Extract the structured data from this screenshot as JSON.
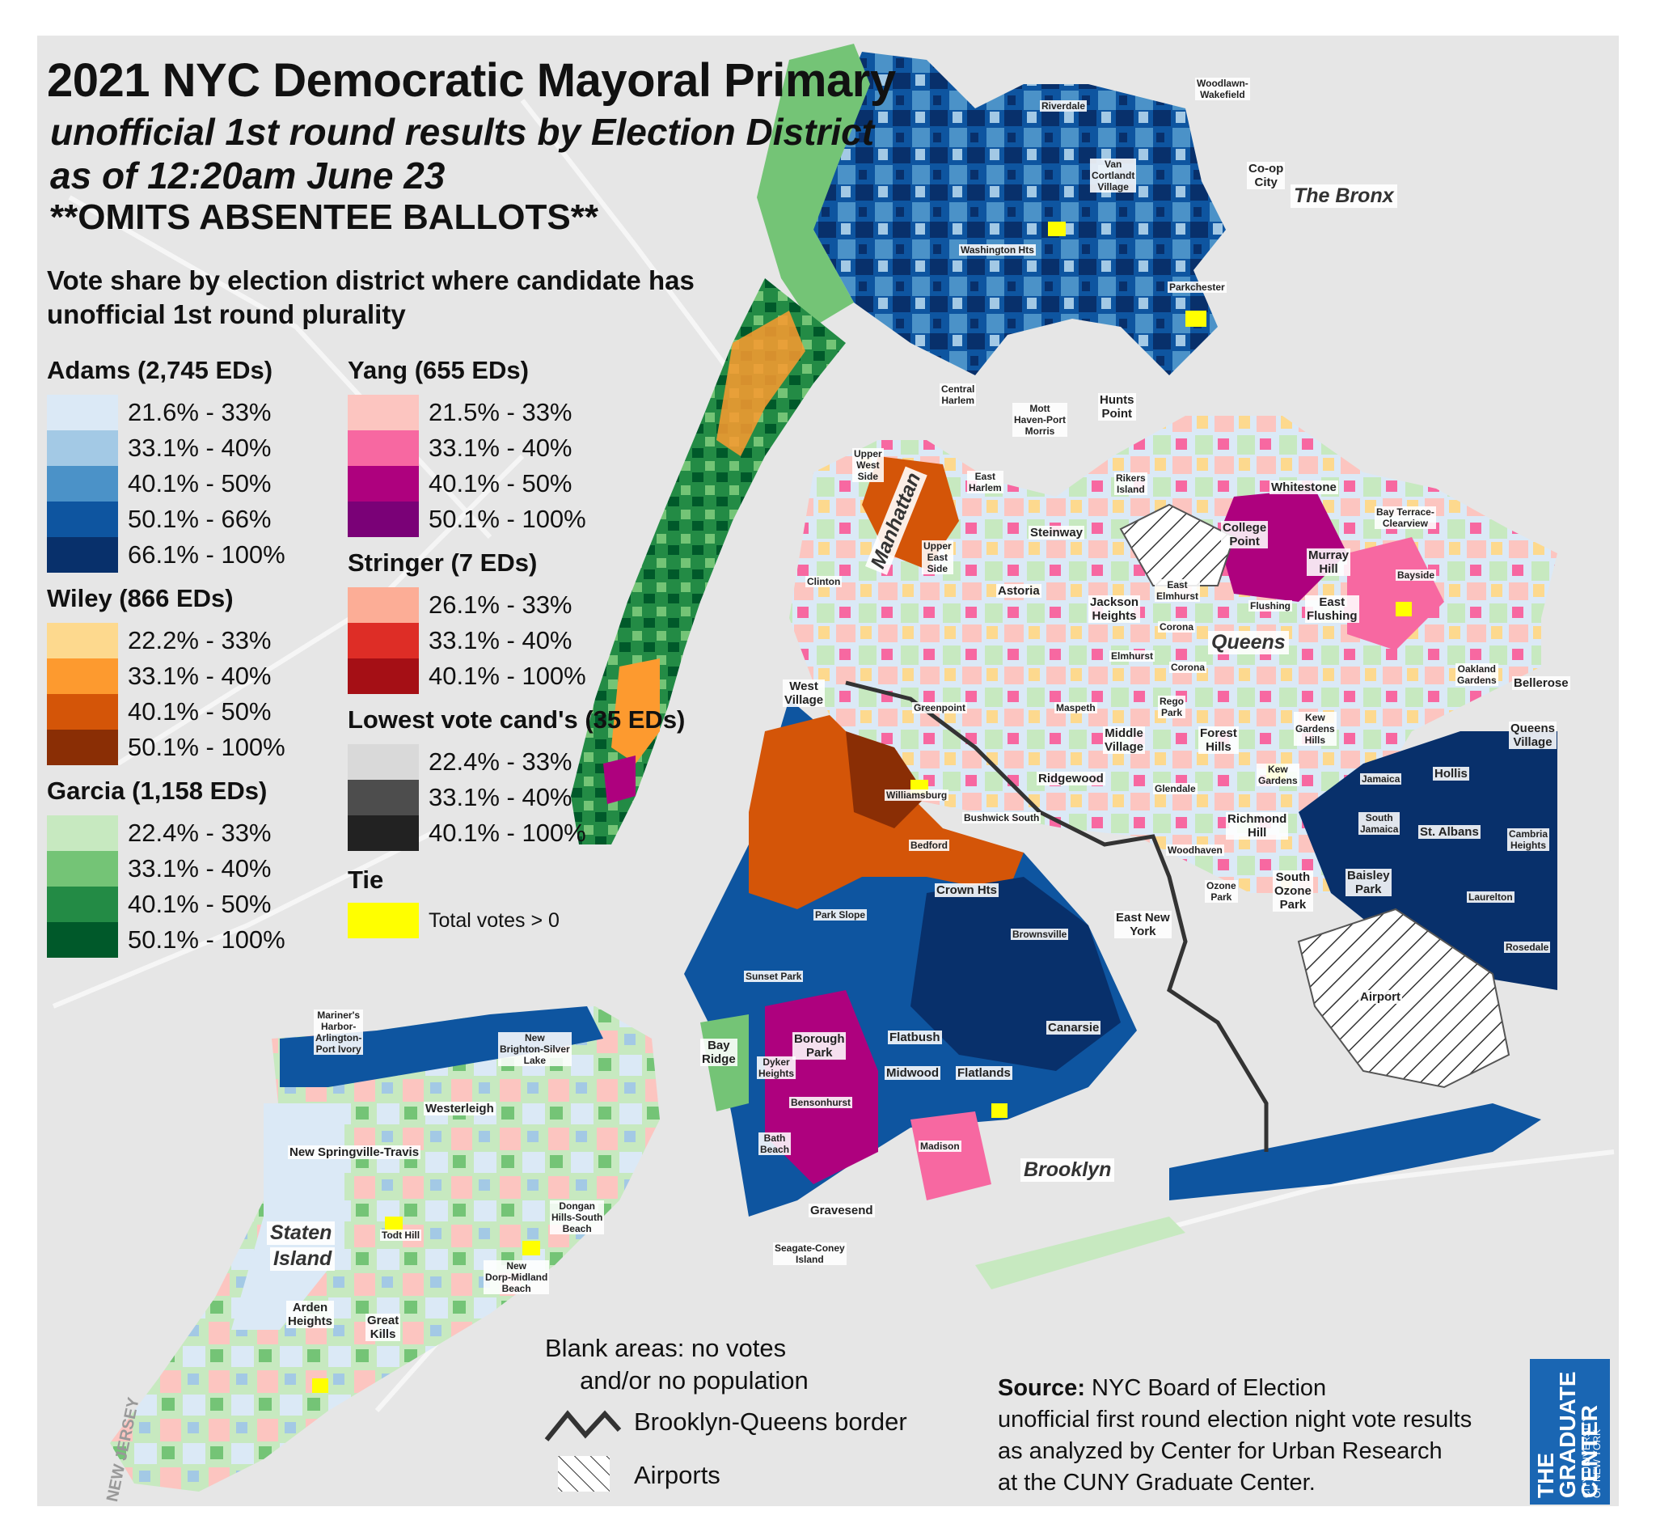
{
  "title": "2021 NYC Democratic Mayoral Primary",
  "subtitle_1": "unofficial 1st round results by Election District",
  "subtitle_2": "as of 12:20am June 23",
  "omits_note": "**OMITS ABSENTEE BALLOTS**",
  "legend_heading": "Vote share by election district where candidate has unofficial 1st round plurality",
  "legend": {
    "adams": {
      "title": "Adams (2,745 EDs)",
      "ranges": [
        "21.6% - 33%",
        "33.1% - 40%",
        "40.1% - 50%",
        "50.1% - 66%",
        "66.1% - 100%"
      ],
      "colors": [
        "#dbe9f6",
        "#a3c9e5",
        "#4b92c8",
        "#0e55a0",
        "#08306b"
      ]
    },
    "wiley": {
      "title": "Wiley (866 EDs)",
      "ranges": [
        "22.2% - 33%",
        "33.1% - 40%",
        "40.1% - 50%",
        "50.1% - 100%"
      ],
      "colors": [
        "#fdd98e",
        "#fd9a2f",
        "#d45508",
        "#8a2e05"
      ]
    },
    "garcia": {
      "title": "Garcia (1,158 EDs)",
      "ranges": [
        "22.4% - 33%",
        "33.1% - 40%",
        "40.1% - 50%",
        "50.1% - 100%"
      ],
      "colors": [
        "#c7e9c0",
        "#74c476",
        "#238b45",
        "#00592a"
      ]
    },
    "yang": {
      "title": "Yang (655 EDs)",
      "ranges": [
        "21.5% - 33%",
        "33.1% - 40%",
        "40.1% - 50%",
        "50.1% - 100%"
      ],
      "colors": [
        "#fcc5c0",
        "#f768a1",
        "#ae017e",
        "#7a0177"
      ]
    },
    "stringer": {
      "title": "Stringer (7 EDs)",
      "ranges": [
        "26.1% - 33%",
        "33.1% - 40%",
        "40.1% - 100%"
      ],
      "colors": [
        "#fcad96",
        "#de2d26",
        "#a50f15"
      ]
    },
    "lowest": {
      "title": "Lowest vote cand's (35 EDs)",
      "ranges": [
        "22.4% - 33%",
        "33.1% - 40%",
        "40.1% - 100%"
      ],
      "colors": [
        "#d9d9d9",
        "#4d4d4d",
        "#222222"
      ]
    },
    "tie": {
      "title": "Tie",
      "label": "Total votes > 0",
      "color": "#ffff00"
    }
  },
  "boroughs": {
    "manhattan": "Manhattan",
    "bronx": "The Bronx",
    "queens": "Queens",
    "brooklyn": "Brooklyn",
    "staten_island_1": "Staten",
    "staten_island_2": "Island"
  },
  "neighborhoods": [
    {
      "id": "riverdale",
      "label": "Riverdale"
    },
    {
      "id": "woodlawn",
      "label": "Woodlawn-\nWakefield"
    },
    {
      "id": "van-cortlandt",
      "label": "Van\nCortlandt\nVillage"
    },
    {
      "id": "co-op-city",
      "label": "Co-op\nCity"
    },
    {
      "id": "washington-hts",
      "label": "Washington Hts"
    },
    {
      "id": "parkchester",
      "label": "Parkchester"
    },
    {
      "id": "central-harlem",
      "label": "Central\nHarlem"
    },
    {
      "id": "mott-haven",
      "label": "Mott\nHaven-Port\nMorris"
    },
    {
      "id": "hunts-point",
      "label": "Hunts\nPoint"
    },
    {
      "id": "upper-west-side",
      "label": "Upper\nWest\nSide"
    },
    {
      "id": "east-harlem",
      "label": "East\nHarlem"
    },
    {
      "id": "rikers",
      "label": "Rikers\nIsland"
    },
    {
      "id": "whitestone",
      "label": "Whitestone"
    },
    {
      "id": "bay-terrace",
      "label": "Bay Terrace-\nClearview"
    },
    {
      "id": "steinway",
      "label": "Steinway"
    },
    {
      "id": "college-point",
      "label": "College\nPoint"
    },
    {
      "id": "murray-hill",
      "label": "Murray\nHill"
    },
    {
      "id": "upper-east-side",
      "label": "Upper\nEast\nSide"
    },
    {
      "id": "astoria",
      "label": "Astoria"
    },
    {
      "id": "east-elmhurst",
      "label": "East\nElmhurst"
    },
    {
      "id": "bayside",
      "label": "Bayside"
    },
    {
      "id": "clinton",
      "label": "Clinton"
    },
    {
      "id": "jackson-heights",
      "label": "Jackson\nHeights"
    },
    {
      "id": "flushing",
      "label": "Flushing"
    },
    {
      "id": "east-flushing",
      "label": "East\nFlushing"
    },
    {
      "id": "corona-1",
      "label": "Corona"
    },
    {
      "id": "elmhurst",
      "label": "Elmhurst"
    },
    {
      "id": "corona-2",
      "label": "Corona"
    },
    {
      "id": "oakland-gardens",
      "label": "Oakland\nGardens"
    },
    {
      "id": "bellerose",
      "label": "Bellerose"
    },
    {
      "id": "west-village",
      "label": "West\nVillage"
    },
    {
      "id": "greenpoint",
      "label": "Greenpoint"
    },
    {
      "id": "maspeth",
      "label": "Maspeth"
    },
    {
      "id": "rego-park",
      "label": "Rego\nPark"
    },
    {
      "id": "kew-gardens-hills",
      "label": "Kew\nGardens\nHills"
    },
    {
      "id": "middle-village",
      "label": "Middle\nVillage"
    },
    {
      "id": "forest-hills",
      "label": "Forest\nHills"
    },
    {
      "id": "queens-village",
      "label": "Queens\nVillage"
    },
    {
      "id": "kew-gardens",
      "label": "Kew\nGardens"
    },
    {
      "id": "ridgewood",
      "label": "Ridgewood"
    },
    {
      "id": "glendale",
      "label": "Glendale"
    },
    {
      "id": "jamaica",
      "label": "Jamaica"
    },
    {
      "id": "hollis",
      "label": "Hollis"
    },
    {
      "id": "williamsburg",
      "label": "Williamsburg"
    },
    {
      "id": "bushwick-south",
      "label": "Bushwick South"
    },
    {
      "id": "richmond-hill",
      "label": "Richmond\nHill"
    },
    {
      "id": "south-jamaica",
      "label": "South\nJamaica"
    },
    {
      "id": "st-albans",
      "label": "St. Albans"
    },
    {
      "id": "cambria-heights",
      "label": "Cambria\nHeights"
    },
    {
      "id": "bedford",
      "label": "Bedford"
    },
    {
      "id": "woodhaven",
      "label": "Woodhaven"
    },
    {
      "id": "crown-hts",
      "label": "Crown Hts"
    },
    {
      "id": "ozone-park",
      "label": "Ozone\nPark"
    },
    {
      "id": "south-ozone-park",
      "label": "South\nOzone\nPark"
    },
    {
      "id": "baisley-park",
      "label": "Baisley\nPark"
    },
    {
      "id": "laurelton",
      "label": "Laurelton"
    },
    {
      "id": "park-slope",
      "label": "Park Slope"
    },
    {
      "id": "east-new-york",
      "label": "East New\nYork"
    },
    {
      "id": "brownsville",
      "label": "Brownsville"
    },
    {
      "id": "rosedale",
      "label": "Rosedale"
    },
    {
      "id": "sunset-park",
      "label": "Sunset Park"
    },
    {
      "id": "airport",
      "label": "Airport"
    },
    {
      "id": "canarsie",
      "label": "Canarsie"
    },
    {
      "id": "mariners-harbor",
      "label": "Mariner's\nHarbor-\nArlington-\nPort Ivory"
    },
    {
      "id": "new-brighton",
      "label": "New\nBrighton-Silver\nLake"
    },
    {
      "id": "bay-ridge",
      "label": "Bay\nRidge"
    },
    {
      "id": "borough-park",
      "label": "Borough\nPark"
    },
    {
      "id": "flatbush",
      "label": "Flatbush"
    },
    {
      "id": "dyker-heights",
      "label": "Dyker\nHeights"
    },
    {
      "id": "midwood",
      "label": "Midwood"
    },
    {
      "id": "flatlands",
      "label": "Flatlands"
    },
    {
      "id": "westerleigh",
      "label": "Westerleigh"
    },
    {
      "id": "bensonhurst",
      "label": "Bensonhurst"
    },
    {
      "id": "bath-beach",
      "label": "Bath\nBeach"
    },
    {
      "id": "madison",
      "label": "Madison"
    },
    {
      "id": "new-springville",
      "label": "New Springville-Travis"
    },
    {
      "id": "dongan-hills",
      "label": "Dongan\nHills-South\nBeach"
    },
    {
      "id": "gravesend",
      "label": "Gravesend"
    },
    {
      "id": "todt-hill",
      "label": "Todt Hill"
    },
    {
      "id": "seagate",
      "label": "Seagate-Coney\nIsland"
    },
    {
      "id": "new-dorp",
      "label": "New\nDorp-Midland\nBeach"
    },
    {
      "id": "arden-heights",
      "label": "Arden\nHeights"
    },
    {
      "id": "great-kills",
      "label": "Great\nKills"
    }
  ],
  "new_jersey_label": "NEW JERSEY",
  "notes": {
    "blank_areas": "Blank areas: no votes\n     and/or no population",
    "border_label": "Brooklyn-Queens border",
    "airports_label": "Airports"
  },
  "source": {
    "bold": "Source:",
    "text_1": " NYC Board of Election",
    "text_2": "unofficial first round election night vote results",
    "text_3": "as analyzed by Center for Urban Research",
    "text_4": "at the CUNY Graduate Center."
  },
  "logo": {
    "line_1": "THE",
    "line_2": "GRADUATE",
    "line_3": "CENTER",
    "sub_1": "CITY UNIVERSITY",
    "sub_2": "OF NEW YORK"
  }
}
